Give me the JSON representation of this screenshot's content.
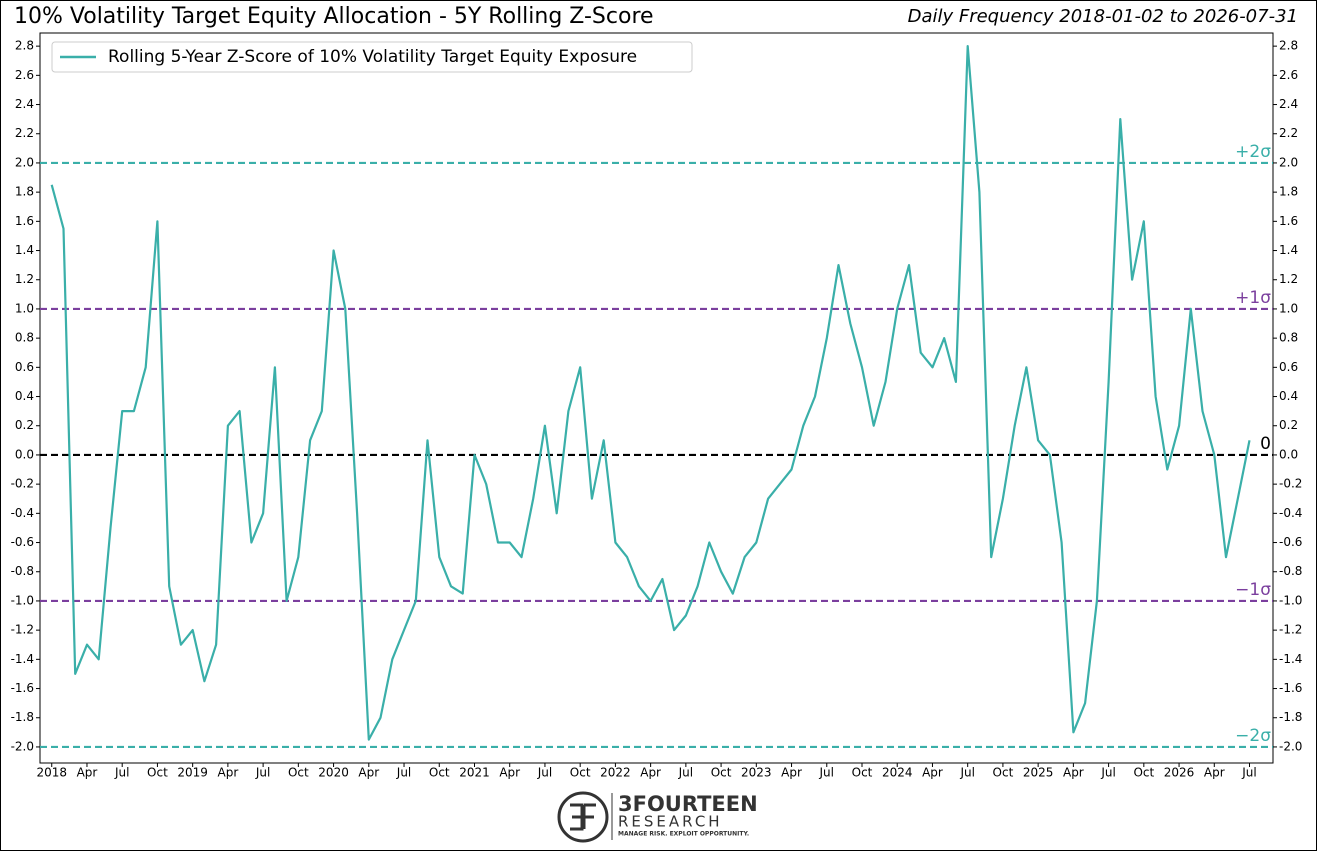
{
  "chart_data": {
    "type": "line",
    "title": "10% Volatility Target Equity Allocation - 5Y Rolling Z-Score",
    "subtitle": "Daily Frequency 2018-01-02 to 2026-07-31",
    "x": [
      "2018-01",
      "2018-02",
      "2018-03",
      "2018-04",
      "2018-05",
      "2018-06",
      "2018-07",
      "2018-08",
      "2018-09",
      "2018-10",
      "2018-11",
      "2018-12",
      "2019-01",
      "2019-02",
      "2019-03",
      "2019-04",
      "2019-05",
      "2019-06",
      "2019-07",
      "2019-08",
      "2019-09",
      "2019-10",
      "2019-11",
      "2019-12",
      "2020-01",
      "2020-02",
      "2020-03",
      "2020-04",
      "2020-05",
      "2020-06",
      "2020-07",
      "2020-08",
      "2020-09",
      "2020-10",
      "2020-11",
      "2020-12",
      "2021-01",
      "2021-02",
      "2021-03",
      "2021-04",
      "2021-05",
      "2021-06",
      "2021-07",
      "2021-08",
      "2021-09",
      "2021-10",
      "2021-11",
      "2021-12",
      "2022-01",
      "2022-02",
      "2022-03",
      "2022-04",
      "2022-05",
      "2022-06",
      "2022-07",
      "2022-08",
      "2022-09",
      "2022-10",
      "2022-11",
      "2022-12",
      "2023-01",
      "2023-02",
      "2023-03",
      "2023-04",
      "2023-05",
      "2023-06",
      "2023-07",
      "2023-08",
      "2023-09",
      "2023-10",
      "2023-11",
      "2023-12",
      "2024-01",
      "2024-02",
      "2024-03",
      "2024-04",
      "2024-05",
      "2024-06",
      "2024-07",
      "2024-08",
      "2024-09",
      "2024-10",
      "2024-11",
      "2024-12",
      "2025-01",
      "2025-02",
      "2025-03",
      "2025-04",
      "2025-05",
      "2025-06",
      "2025-07",
      "2025-08",
      "2025-09",
      "2025-10",
      "2025-11",
      "2025-12",
      "2026-01",
      "2026-02",
      "2026-03",
      "2026-04",
      "2026-05",
      "2026-06",
      "2026-07"
    ],
    "series": [
      {
        "name": "Rolling 5-Year Z-Score of 10% Volatility Target Equity Exposure",
        "color": "#3aafa9",
        "values": [
          1.85,
          1.55,
          -1.5,
          -1.3,
          -1.4,
          -0.5,
          0.3,
          0.3,
          0.6,
          1.6,
          -0.9,
          -1.3,
          -1.2,
          -1.55,
          -1.3,
          0.2,
          0.3,
          -0.6,
          -0.4,
          0.6,
          -1.0,
          -0.7,
          0.1,
          0.3,
          1.4,
          1.0,
          -0.4,
          -1.95,
          -1.8,
          -1.4,
          -1.2,
          -1.0,
          0.1,
          -0.7,
          -0.9,
          -0.95,
          0.0,
          -0.2,
          -0.6,
          -0.6,
          -0.7,
          -0.3,
          0.2,
          -0.4,
          0.3,
          0.6,
          -0.3,
          0.1,
          -0.6,
          -0.7,
          -0.9,
          -1.0,
          -0.85,
          -1.2,
          -1.1,
          -0.9,
          -0.6,
          -0.8,
          -0.95,
          -0.7,
          -0.6,
          -0.3,
          -0.2,
          -0.1,
          0.2,
          0.4,
          0.8,
          1.3,
          0.9,
          0.6,
          0.2,
          0.5,
          1.0,
          1.3,
          0.7,
          0.6,
          0.8,
          0.5,
          2.8,
          1.8,
          -0.7,
          -0.3,
          0.2,
          0.6,
          0.1,
          0.0,
          -0.6,
          -1.9,
          -1.7,
          -1.0,
          0.5,
          2.3,
          1.2,
          1.6,
          0.4,
          -0.1,
          0.2,
          1.0,
          0.3,
          0.0,
          -0.7,
          -0.3,
          0.1
        ]
      }
    ],
    "xlim": [
      "2017-12",
      "2026-09"
    ],
    "xticks": [
      {
        "value": "2018-01",
        "label": "2018"
      },
      {
        "value": "2018-04",
        "label": "Apr"
      },
      {
        "value": "2018-07",
        "label": "Jul"
      },
      {
        "value": "2018-10",
        "label": "Oct"
      },
      {
        "value": "2019-01",
        "label": "2019"
      },
      {
        "value": "2019-04",
        "label": "Apr"
      },
      {
        "value": "2019-07",
        "label": "Jul"
      },
      {
        "value": "2019-10",
        "label": "Oct"
      },
      {
        "value": "2020-01",
        "label": "2020"
      },
      {
        "value": "2020-04",
        "label": "Apr"
      },
      {
        "value": "2020-07",
        "label": "Jul"
      },
      {
        "value": "2020-10",
        "label": "Oct"
      },
      {
        "value": "2021-01",
        "label": "2021"
      },
      {
        "value": "2021-04",
        "label": "Apr"
      },
      {
        "value": "2021-07",
        "label": "Jul"
      },
      {
        "value": "2021-10",
        "label": "Oct"
      },
      {
        "value": "2022-01",
        "label": "2022"
      },
      {
        "value": "2022-04",
        "label": "Apr"
      },
      {
        "value": "2022-07",
        "label": "Jul"
      },
      {
        "value": "2022-10",
        "label": "Oct"
      },
      {
        "value": "2023-01",
        "label": "2023"
      },
      {
        "value": "2023-04",
        "label": "Apr"
      },
      {
        "value": "2023-07",
        "label": "Jul"
      },
      {
        "value": "2023-10",
        "label": "Oct"
      },
      {
        "value": "2024-01",
        "label": "2024"
      },
      {
        "value": "2024-04",
        "label": "Apr"
      },
      {
        "value": "2024-07",
        "label": "Jul"
      },
      {
        "value": "2024-10",
        "label": "Oct"
      },
      {
        "value": "2025-01",
        "label": "2025"
      },
      {
        "value": "2025-04",
        "label": "Apr"
      },
      {
        "value": "2025-07",
        "label": "Jul"
      },
      {
        "value": "2025-10",
        "label": "Oct"
      },
      {
        "value": "2026-01",
        "label": "2026"
      },
      {
        "value": "2026-04",
        "label": "Apr"
      },
      {
        "value": "2026-07",
        "label": "Jul"
      }
    ],
    "ylim": [
      -2.11,
      2.89
    ],
    "yticks": [
      {
        "value": -2,
        "label": "-2.0"
      },
      -1.8,
      -1.6,
      -1.4,
      -1.2,
      {
        "value": -1,
        "label": "-1.0"
      },
      -0.8,
      -0.6,
      -0.4,
      -0.2,
      {
        "value": 0,
        "label": "0.0"
      },
      0.2,
      0.4,
      0.6,
      0.8,
      {
        "value": 1,
        "label": "1.0"
      },
      1.2,
      1.4,
      1.6,
      1.8,
      {
        "value": 2,
        "label": "2.0"
      },
      2.2,
      2.4,
      2.6,
      2.8
    ],
    "reference_lines": [
      {
        "value": 2,
        "label": "+2σ",
        "color": "#3aafa9"
      },
      {
        "value": 1,
        "label": "+1σ",
        "color": "#7b3f9e"
      },
      {
        "value": 0,
        "label": "0",
        "color": "#000000"
      },
      {
        "value": -1,
        "label": "−1σ",
        "color": "#7b3f9e"
      },
      {
        "value": -2,
        "label": "−2σ",
        "color": "#3aafa9"
      }
    ],
    "legend": "upper left",
    "logo": {
      "name": "3FOURTEEN",
      "line2": "RESEARCH",
      "tagline": "MANAGE RISK. EXPLOIT OPPORTUNITY."
    }
  }
}
